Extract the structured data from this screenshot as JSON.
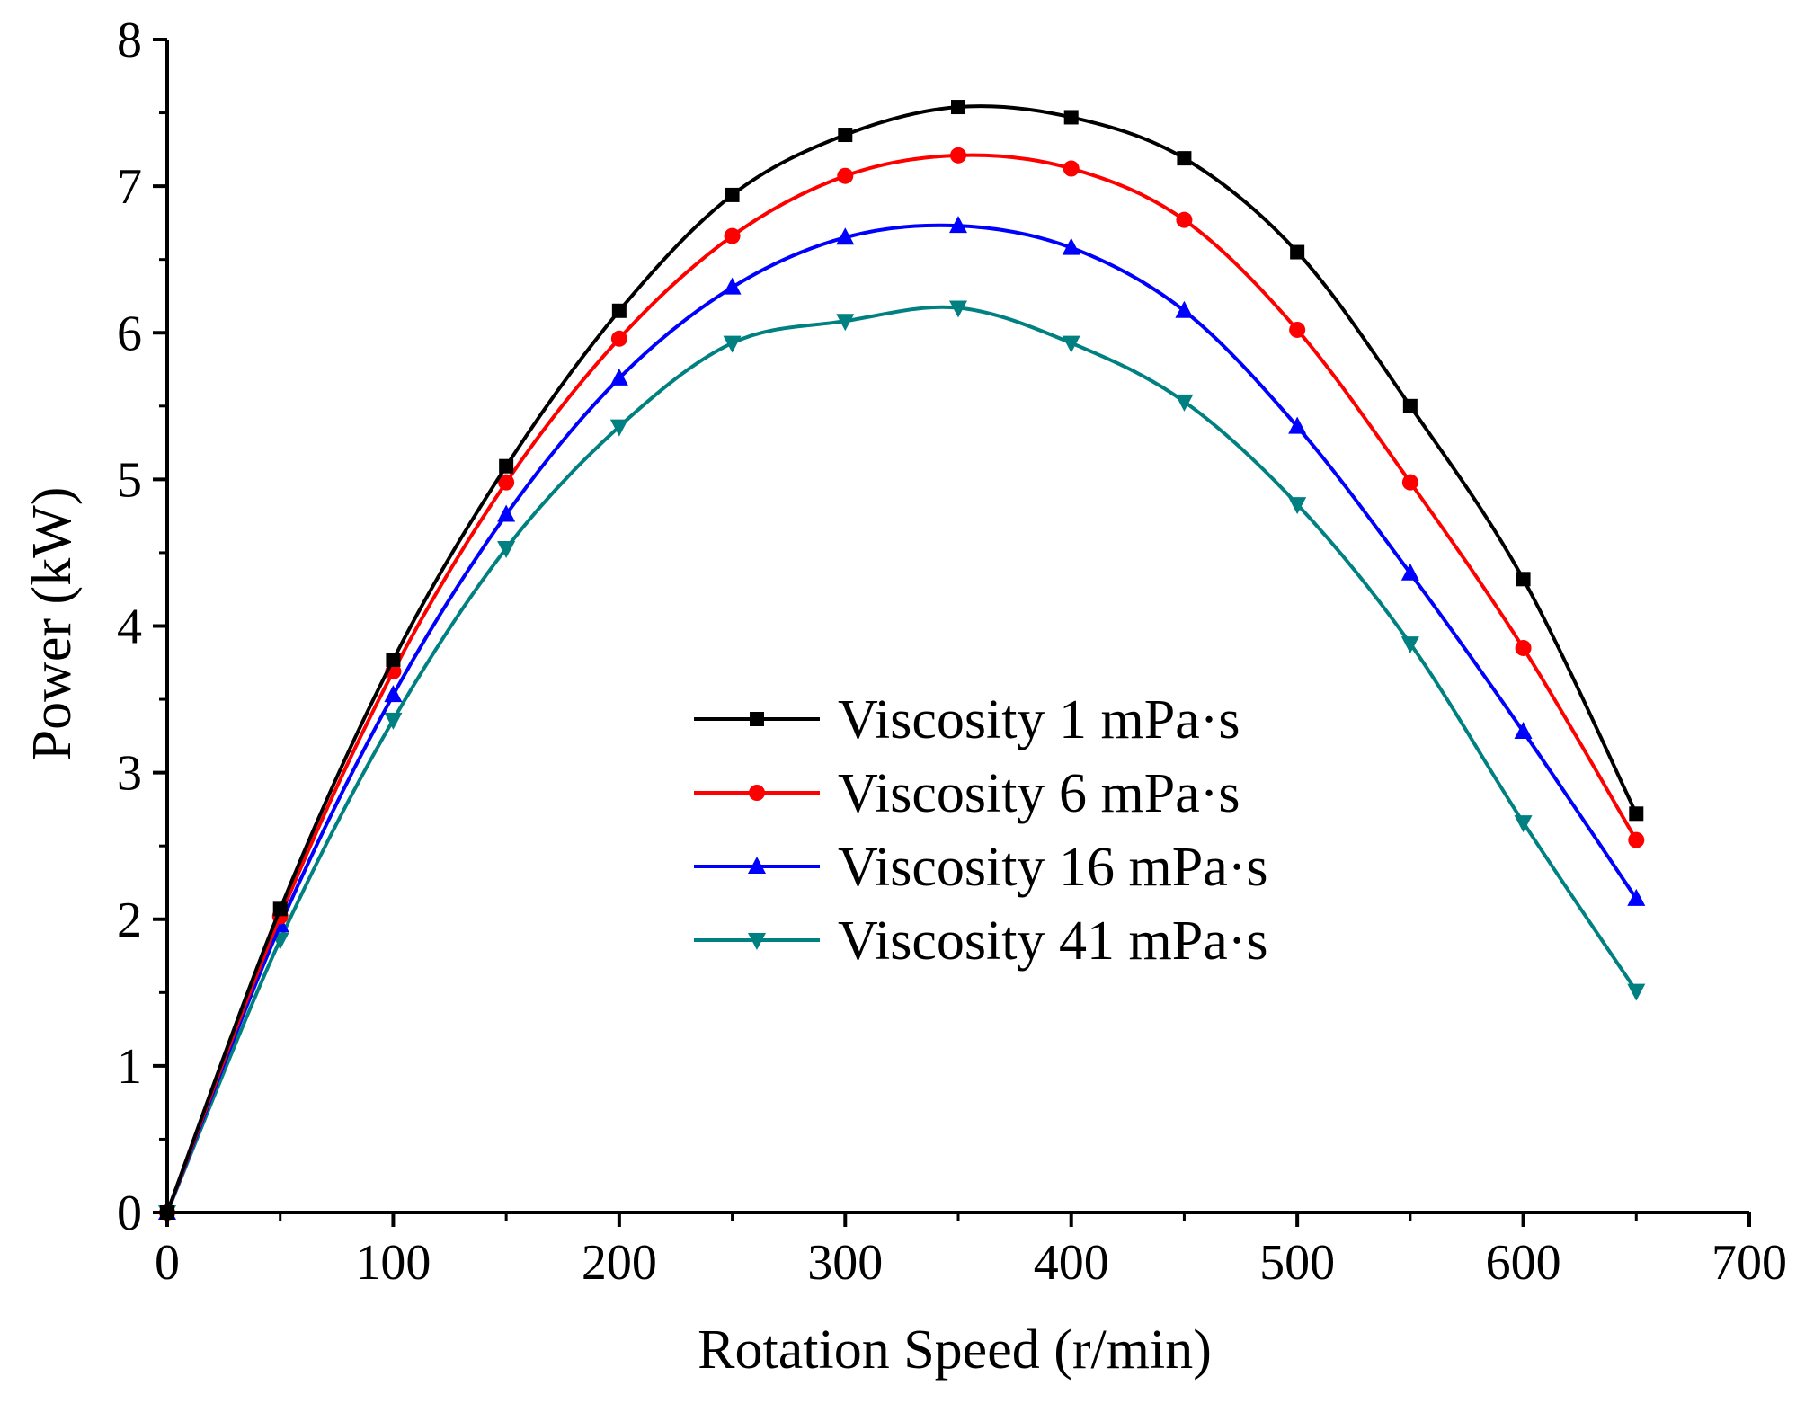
{
  "chart_data": {
    "type": "line",
    "title": "",
    "xlabel": "Rotation Speed (r/min)",
    "ylabel": "Power (kW)",
    "xlim": [
      0,
      700
    ],
    "ylim": [
      0,
      8
    ],
    "xticks": [
      0,
      100,
      200,
      300,
      400,
      500,
      600,
      700
    ],
    "yticks": [
      0,
      1,
      2,
      3,
      4,
      5,
      6,
      7,
      8
    ],
    "grid": false,
    "legend_position": "center",
    "x": [
      0,
      50,
      100,
      150,
      200,
      250,
      300,
      350,
      400,
      450,
      500,
      550,
      600,
      650
    ],
    "series": [
      {
        "name": "Viscosity 1 mPa·s",
        "color": "#000000",
        "marker": "square",
        "values": [
          0,
          2.07,
          3.77,
          5.09,
          6.15,
          6.94,
          7.35,
          7.54,
          7.47,
          7.19,
          6.55,
          5.5,
          4.32,
          2.72
        ]
      },
      {
        "name": "Viscosity 6 mPa·s",
        "color": "#ff0000",
        "marker": "circle",
        "values": [
          0,
          2.02,
          3.69,
          4.98,
          5.96,
          6.66,
          7.07,
          7.21,
          7.12,
          6.77,
          6.02,
          4.98,
          3.85,
          2.54
        ]
      },
      {
        "name": "Viscosity 16 mPa·s",
        "color": "#0000ff",
        "marker": "triangle-up",
        "values": [
          0,
          1.96,
          3.53,
          4.76,
          5.69,
          6.31,
          6.65,
          6.73,
          6.58,
          6.15,
          5.36,
          4.36,
          3.28,
          2.14
        ]
      },
      {
        "name": "Viscosity 41 mPa·s",
        "color": "#008080",
        "marker": "triangle-down",
        "values": [
          0,
          1.86,
          3.36,
          4.53,
          5.36,
          5.93,
          6.08,
          6.17,
          5.93,
          5.53,
          4.83,
          3.88,
          2.66,
          1.51
        ]
      }
    ]
  }
}
